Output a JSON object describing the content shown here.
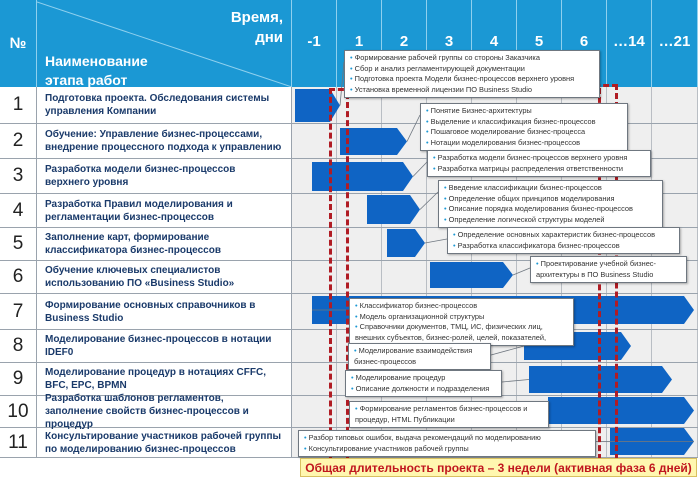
{
  "header": {
    "num": "№",
    "time": [
      "Время,",
      "дни"
    ],
    "name": [
      "Наименование",
      "этапа работ"
    ],
    "days": [
      "-1",
      "1",
      "2",
      "3",
      "4",
      "5",
      "6",
      "…14",
      "…21"
    ]
  },
  "rows": [
    {
      "n": "1",
      "title": "Подготовка проекта. Обследования системы управления Компании"
    },
    {
      "n": "2",
      "title": "Обучение: Управление бизнес-процессами, внедрение процессного подхода к управлению"
    },
    {
      "n": "3",
      "title": "Разработка модели бизнес-процессов верхнего уровня"
    },
    {
      "n": "4",
      "title": "Разработка Правил моделирования и регламентации бизнес-процессов"
    },
    {
      "n": "5",
      "title": "Заполнение карт, формирование классификатора бизнес-процессов"
    },
    {
      "n": "6",
      "title": "Обучение ключевых специалистов использованию ПО «Business Studio»"
    },
    {
      "n": "7",
      "title": "Формирование основных справочников в Business Studio"
    },
    {
      "n": "8",
      "title": "Моделирование бизнес-процессов в нотации IDEF0"
    },
    {
      "n": "9",
      "title": "Моделирование процедур в нотациях CFFC, BFC, EPC, BPMN"
    },
    {
      "n": "10",
      "title": "Разработка шаблонов регламентов, заполнение свойств бизнес-процессов и процедур"
    },
    {
      "n": "11",
      "title": "Консультирование участников рабочей группы по моделированию бизнес-процессов"
    }
  ],
  "callouts": [
    [
      "Формирование рабочей группы со стороны Заказчика",
      "Сбор и анализ регламентирующей документации",
      "Подготовка проекта Модели бизнес-процессов верхнего уровня",
      "Установка временной лицензии ПО Business Studio"
    ],
    [
      "Понятие Бизнес-архитектуры",
      "Выделение и классификация бизнес-процессов",
      "Пошаговое моделирование бизнес-процесса",
      "Нотации моделирования бизнес-процессов"
    ],
    [
      "Разработка модели бизнес-процессов верхнего уровня",
      "Разработка матрицы распределения ответственности"
    ],
    [
      "Введение классификации бизнес-процессов",
      "Определение общих принципов моделирования",
      "Описание порядка моделирования бизнес-процессов",
      "Определение логической структуры моделей"
    ],
    [
      "Определение основных характеристик бизнес-процессов",
      "Разработка классификатора бизнес-процессов"
    ],
    [
      "Проектирование учебной бизнес-архитектуры в ПО Business Studio"
    ],
    [
      "Классификатор бизнес-процессов",
      "Модель организационной структуры",
      "Справочники документов, ТМЦ, ИС, физических лиц, внешних субъектов, бизнес-ролей, целей, показателей,"
    ],
    [
      "Моделирование взаимодействия бизнес-процессов"
    ],
    [
      "Моделирование процедур",
      "Описание должности и подразделения"
    ],
    [
      "Формирование регламентов бизнес-процессов и процедур, HTML Публикации"
    ],
    [
      "Разбор типовых ошибок, выдача рекомендаций по моделированию",
      "Консультирование участников рабочей группы"
    ]
  ],
  "footer": "Общая длительность проекта – 3 недели (активная фаза 6 дней)",
  "colors": {
    "header": "#1b98d4",
    "bar": "#0f64c4",
    "dash": "#b01c24"
  }
}
